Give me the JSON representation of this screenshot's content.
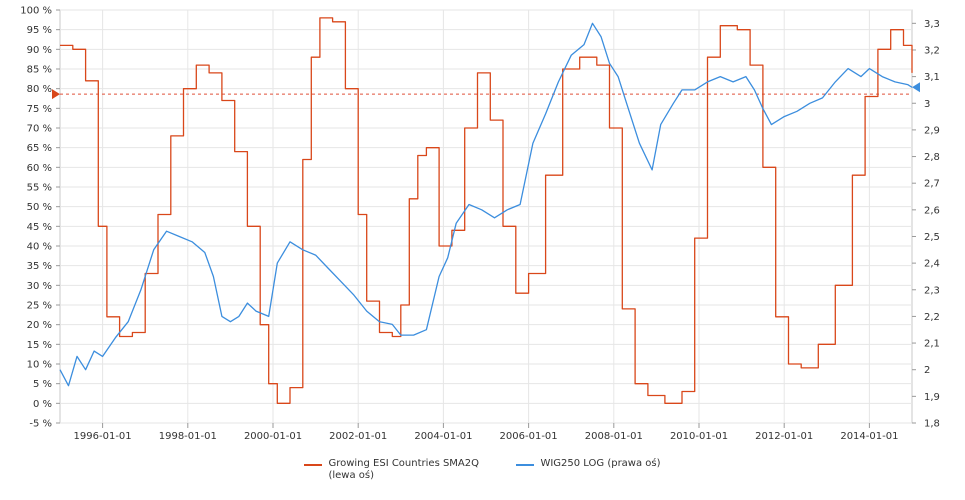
{
  "chart_data": {
    "type": "line",
    "title": "",
    "xlabel": "",
    "x_ticks": [
      "1996-01-01",
      "1998-01-01",
      "2000-01-01",
      "2002-01-01",
      "2004-01-01",
      "2006-01-01",
      "2008-01-01",
      "2010-01-01",
      "2012-01-01",
      "2014-01-01"
    ],
    "left_axis": {
      "ticks": [
        "100 %",
        "95 %",
        "90 %",
        "85 %",
        "80 %",
        "75 %",
        "70 %",
        "65 %",
        "60 %",
        "55 %",
        "50 %",
        "45 %",
        "40 %",
        "35 %",
        "30 %",
        "25 %",
        "20 %",
        "15 %",
        "10 %",
        "5 %",
        "0 %",
        "-5 %"
      ],
      "ylim": [
        -5,
        100
      ]
    },
    "right_axis": {
      "ticks": [
        "3,3",
        "3,2",
        "3,1",
        "3",
        "2,9",
        "2,8",
        "2,7",
        "2,6",
        "2,5",
        "2,4",
        "2,3",
        "2,2",
        "2,1",
        "2",
        "1,9",
        "1,8"
      ],
      "ylim": [
        1.8,
        3.35
      ]
    },
    "reference_line": {
      "value": 78.6,
      "axis": "left"
    },
    "series": [
      {
        "name": "Growing ESI Countries  SMA2Q (lewa oś)",
        "axis": "left",
        "color": "#d9471a",
        "x": [
          1995.0,
          1995.3,
          1995.6,
          1995.9,
          1996.1,
          1996.4,
          1996.7,
          1997.0,
          1997.3,
          1997.6,
          1997.9,
          1998.2,
          1998.5,
          1998.8,
          1999.1,
          1999.4,
          1999.7,
          1999.9,
          2000.1,
          2000.4,
          2000.7,
          2000.9,
          2001.1,
          2001.4,
          2001.7,
          2002.0,
          2002.2,
          2002.5,
          2002.8,
          2003.0,
          2003.2,
          2003.4,
          2003.6,
          2003.9,
          2004.2,
          2004.5,
          2004.8,
          2005.1,
          2005.4,
          2005.7,
          2006.0,
          2006.4,
          2006.8,
          2007.2,
          2007.6,
          2007.9,
          2008.2,
          2008.5,
          2008.8,
          2009.2,
          2009.6,
          2009.9,
          2010.2,
          2010.5,
          2010.9,
          2011.2,
          2011.5,
          2011.8,
          2012.1,
          2012.4,
          2012.8,
          2013.2,
          2013.6,
          2013.9,
          2014.2,
          2014.5,
          2014.8,
          2015.0
        ],
        "y": [
          91,
          90,
          82,
          45,
          22,
          17,
          18,
          33,
          48,
          68,
          80,
          86,
          84,
          77,
          64,
          45,
          20,
          5,
          0,
          4,
          62,
          88,
          98,
          97,
          80,
          48,
          26,
          18,
          17,
          25,
          52,
          63,
          65,
          40,
          44,
          70,
          84,
          72,
          45,
          28,
          33,
          58,
          85,
          88,
          86,
          70,
          24,
          5,
          2,
          0,
          3,
          42,
          88,
          96,
          95,
          86,
          60,
          22,
          10,
          9,
          15,
          30,
          58,
          78,
          90,
          95,
          91,
          84
        ]
      },
      {
        "name": "WIG250  LOG (prawa oś)",
        "axis": "right",
        "color": "#3c8ede",
        "x": [
          1995.0,
          1995.2,
          1995.4,
          1995.6,
          1995.8,
          1996.0,
          1996.3,
          1996.6,
          1996.9,
          1997.2,
          1997.5,
          1997.8,
          1998.1,
          1998.4,
          1998.6,
          1998.8,
          1999.0,
          1999.2,
          1999.4,
          1999.6,
          1999.9,
          2000.1,
          2000.4,
          2000.7,
          2001.0,
          2001.3,
          2001.6,
          2001.9,
          2002.2,
          2002.5,
          2002.8,
          2003.0,
          2003.3,
          2003.6,
          2003.9,
          2004.1,
          2004.3,
          2004.6,
          2004.9,
          2005.2,
          2005.5,
          2005.8,
          2006.1,
          2006.4,
          2006.7,
          2007.0,
          2007.3,
          2007.5,
          2007.7,
          2007.9,
          2008.1,
          2008.3,
          2008.6,
          2008.9,
          2009.1,
          2009.4,
          2009.6,
          2009.9,
          2010.2,
          2010.5,
          2010.8,
          2011.1,
          2011.3,
          2011.5,
          2011.7,
          2012.0,
          2012.3,
          2012.6,
          2012.9,
          2013.2,
          2013.5,
          2013.8,
          2014.0,
          2014.3,
          2014.6,
          2014.9,
          2015.0
        ],
        "y": [
          2.0,
          1.94,
          2.05,
          2.0,
          2.07,
          2.05,
          2.12,
          2.18,
          2.3,
          2.45,
          2.52,
          2.5,
          2.48,
          2.44,
          2.35,
          2.2,
          2.18,
          2.2,
          2.25,
          2.22,
          2.2,
          2.4,
          2.48,
          2.45,
          2.43,
          2.38,
          2.33,
          2.28,
          2.22,
          2.18,
          2.17,
          2.13,
          2.13,
          2.15,
          2.35,
          2.42,
          2.55,
          2.62,
          2.6,
          2.57,
          2.6,
          2.62,
          2.85,
          2.96,
          3.08,
          3.18,
          3.22,
          3.3,
          3.25,
          3.15,
          3.1,
          3.0,
          2.85,
          2.75,
          2.92,
          3.0,
          3.05,
          3.05,
          3.08,
          3.1,
          3.08,
          3.1,
          3.05,
          2.98,
          2.92,
          2.95,
          2.97,
          3.0,
          3.02,
          3.08,
          3.13,
          3.1,
          3.13,
          3.1,
          3.08,
          3.07,
          3.06
        ]
      }
    ],
    "grid": true,
    "legend_position": "bottom"
  }
}
